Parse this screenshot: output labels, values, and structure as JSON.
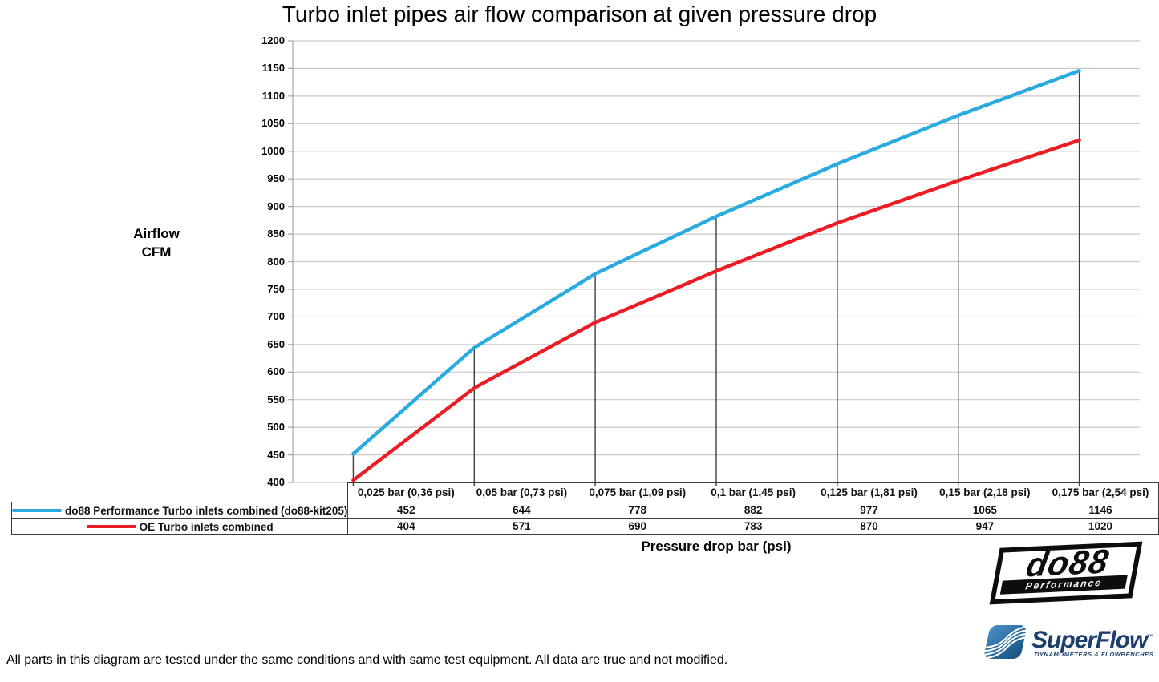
{
  "page": {
    "footer": "All parts in this diagram are tested under the same conditions and with same test equipment. All data are true and not modified."
  },
  "chart_data": {
    "type": "line",
    "title": "Turbo inlet pipes air flow comparison at given pressure drop",
    "xlabel": "Pressure drop bar (psi)",
    "ylabel": "Airflow CFM",
    "ylabel_lines": [
      "Airflow",
      "CFM"
    ],
    "categories": [
      "0,025 bar (0,36 psi)",
      "0,05 bar (0,73 psi)",
      "0,075 bar (1,09 psi)",
      "0,1 bar (1,45 psi)",
      "0,125 bar (1,81 psi)",
      "0,15 bar (2,18 psi)",
      "0,175 bar (2,54 psi)"
    ],
    "series": [
      {
        "name": "do88 Performance Turbo inlets combined (do88-kit205)",
        "color": "#29ABE2",
        "values": [
          452,
          644,
          778,
          882,
          977,
          1065,
          1146
        ]
      },
      {
        "name": "OE Turbo inlets combined",
        "color": "#EC1C24",
        "values": [
          404,
          571,
          690,
          783,
          870,
          947,
          1020
        ]
      }
    ],
    "ylim": [
      400,
      1200
    ],
    "y_tick_step": 50,
    "grid": true,
    "drop_lines": true,
    "legend_position": "table-left"
  },
  "colors": {
    "background": "#FFFFFF",
    "gridline": "#C9C9C9",
    "axis": "#A6A6A6",
    "drop_line": "#3F3F3F",
    "table_border": "#3A3A3A",
    "text": "#111111",
    "superflow_blue": "#1C3F6E",
    "logo_black": "#0D0D0D"
  },
  "logos": {
    "do88": {
      "text": "do88",
      "subtitle": "Performance"
    },
    "superflow": {
      "text": "SuperFlow",
      "tm": "™",
      "subtitle": "DYNAMOMETERS & FLOWBENCHES"
    }
  }
}
